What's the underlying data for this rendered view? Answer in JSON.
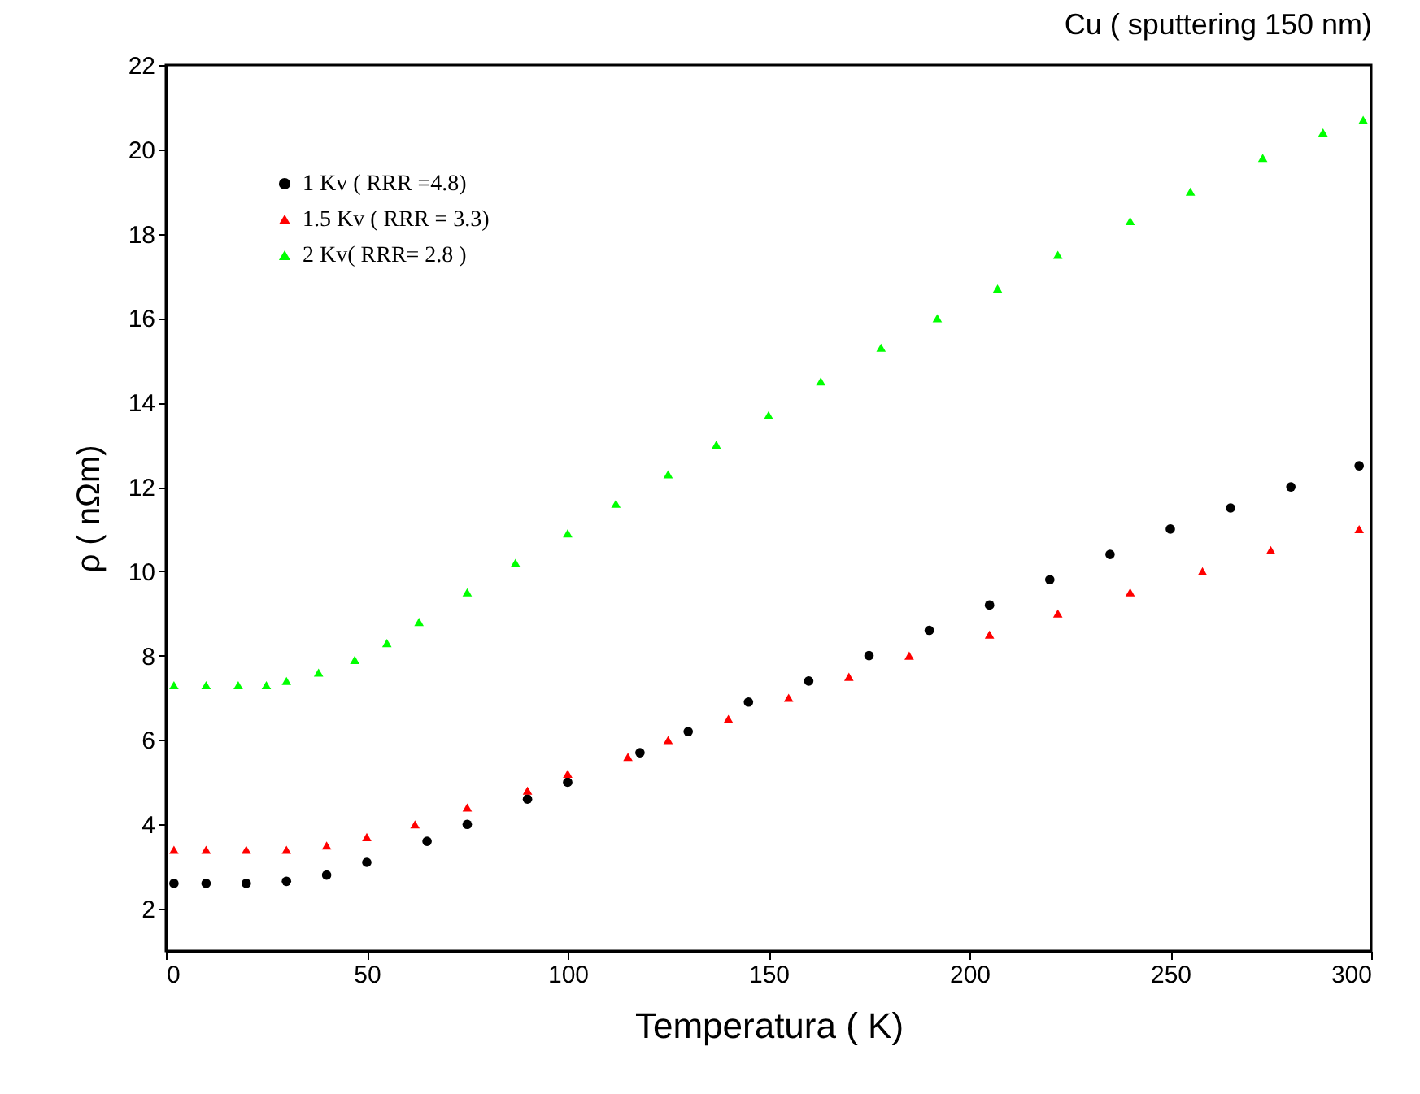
{
  "chart_data": {
    "type": "scatter",
    "title": "Cu ( sputtering 150 nm)",
    "xlabel": "Temperatura ( K)",
    "ylabel": "ρ ( nΩm)",
    "xlim": [
      0,
      300
    ],
    "xticks": [
      0,
      50,
      100,
      150,
      200,
      250,
      300
    ],
    "ylim": [
      1,
      22
    ],
    "yticks": [
      2,
      4,
      6,
      8,
      10,
      12,
      14,
      16,
      18,
      20,
      22
    ],
    "grid": false,
    "legend": "top left",
    "series": [
      {
        "name": "1 Kv ( RRR =4.8)",
        "color": "#000000",
        "marker": "circle",
        "x": [
          2,
          10,
          20,
          30,
          40,
          50,
          65,
          75,
          90,
          100,
          118,
          130,
          145,
          160,
          175,
          190,
          205,
          220,
          235,
          250,
          265,
          280,
          297
        ],
        "values": [
          2.6,
          2.6,
          2.6,
          2.65,
          2.8,
          3.1,
          3.6,
          4.0,
          4.6,
          5.0,
          5.7,
          6.2,
          6.9,
          7.4,
          8.0,
          8.6,
          9.2,
          9.8,
          10.4,
          11.0,
          11.5,
          12.0,
          12.5
        ]
      },
      {
        "name": "1.5 Kv ( RRR = 3.3)",
        "color": "#ff0000",
        "marker": "triangle",
        "x": [
          2,
          10,
          20,
          30,
          40,
          50,
          62,
          75,
          90,
          100,
          115,
          125,
          140,
          155,
          170,
          185,
          205,
          222,
          240,
          258,
          275,
          297
        ],
        "values": [
          3.4,
          3.4,
          3.4,
          3.4,
          3.5,
          3.7,
          4.0,
          4.4,
          4.8,
          5.2,
          5.6,
          6.0,
          6.5,
          7.0,
          7.5,
          8.0,
          8.5,
          9.0,
          9.5,
          10.0,
          10.5,
          11.0
        ]
      },
      {
        "name": "2 Kv( RRR= 2.8 )",
        "color": "#00ff00",
        "marker": "triangle",
        "x": [
          2,
          10,
          18,
          25,
          30,
          38,
          47,
          55,
          63,
          75,
          87,
          100,
          112,
          125,
          137,
          150,
          163,
          178,
          192,
          207,
          222,
          240,
          255,
          273,
          288,
          298
        ],
        "values": [
          7.3,
          7.3,
          7.3,
          7.3,
          7.4,
          7.6,
          7.9,
          8.3,
          8.8,
          9.5,
          10.2,
          10.9,
          11.6,
          12.3,
          13.0,
          13.7,
          14.5,
          15.3,
          16.0,
          16.7,
          17.5,
          18.3,
          19.0,
          19.8,
          20.4,
          20.7
        ]
      }
    ]
  }
}
